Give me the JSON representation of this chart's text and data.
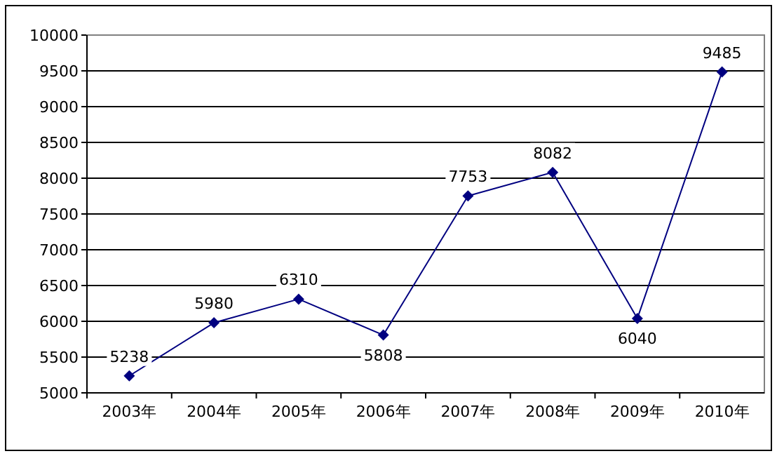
{
  "chart_data": {
    "type": "line",
    "categories": [
      "2003年",
      "2004年",
      "2005年",
      "2006年",
      "2007年",
      "2008年",
      "2009年",
      "2010年"
    ],
    "series": [
      {
        "color": "#000080",
        "values": [
          5238,
          5980,
          6310,
          5808,
          7753,
          8082,
          6040,
          9485
        ]
      }
    ],
    "ylim": [
      5000,
      10000
    ],
    "yticks": [
      5000,
      5500,
      6000,
      6500,
      7000,
      7500,
      8000,
      8500,
      9000,
      9500,
      10000
    ],
    "grid": "y",
    "marker": "diamond",
    "line_style": "solid",
    "data_labels": true
  }
}
